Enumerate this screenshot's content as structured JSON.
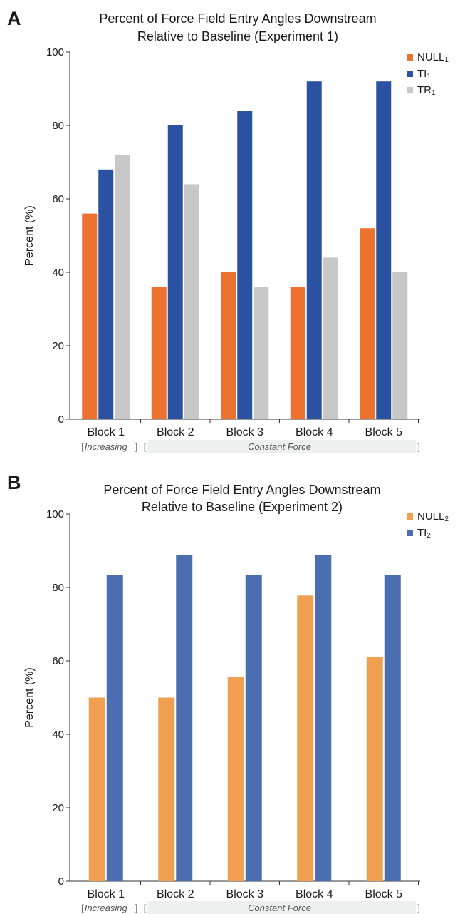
{
  "chart_data": [
    {
      "type": "bar",
      "panel_label": "A",
      "title": [
        "Percent of Force Field Entry Angles Downstream",
        "Relative to Baseline (Experiment 1)"
      ],
      "ylabel": "Percent (%)",
      "xlabel": "",
      "ylim": [
        0,
        100
      ],
      "yticks": [
        0,
        20,
        40,
        60,
        80,
        100
      ],
      "categories": [
        "Block 1",
        "Block 2",
        "Block 3",
        "Block 4",
        "Block 5"
      ],
      "series": [
        {
          "name": "NULL",
          "subscript": "1",
          "color": "#ed7230",
          "values": [
            56,
            36,
            40,
            36,
            52
          ]
        },
        {
          "name": "TI",
          "subscript": "1",
          "color": "#2a52a0",
          "values": [
            68,
            80,
            84,
            92,
            92
          ]
        },
        {
          "name": "TR",
          "subscript": "1",
          "color": "#c8c8c8",
          "values": [
            72,
            64,
            36,
            44,
            40
          ]
        }
      ],
      "legend_position": "top-right",
      "annotations": {
        "increasing": "Increasing",
        "constant": "Constant Force",
        "open": "[",
        "close": "]"
      }
    },
    {
      "type": "bar",
      "panel_label": "B",
      "title": [
        "Percent of Force Field Entry Angles Downstream",
        "Relative to Baseline (Experiment 2)"
      ],
      "ylabel": "Percent (%)",
      "xlabel": "",
      "ylim": [
        0,
        100
      ],
      "yticks": [
        0,
        20,
        40,
        60,
        80,
        100
      ],
      "categories": [
        "Block 1",
        "Block 2",
        "Block 3",
        "Block 4",
        "Block 5"
      ],
      "series": [
        {
          "name": "NULL",
          "subscript": "2",
          "color": "#f0a050",
          "values": [
            50,
            50,
            55.6,
            77.8,
            61.1
          ]
        },
        {
          "name": "TI",
          "subscript": "2",
          "color": "#4a6eb0",
          "values": [
            83.3,
            88.9,
            83.3,
            88.9,
            83.3
          ]
        }
      ],
      "legend_position": "top-right",
      "annotations": {
        "increasing": "Increasing",
        "constant": "Constant Force",
        "open": "[",
        "close": "]"
      }
    }
  ]
}
